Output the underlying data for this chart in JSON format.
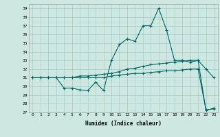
{
  "title": "",
  "xlabel": "Humidex (Indice chaleur)",
  "bg_color": "#cce8e0",
  "grid_color": "#aacccc",
  "line_color": "#006666",
  "xlim": [
    -0.5,
    23.5
  ],
  "ylim": [
    27,
    39.5
  ],
  "yticks": [
    27,
    28,
    29,
    30,
    31,
    32,
    33,
    34,
    35,
    36,
    37,
    38,
    39
  ],
  "xticks": [
    0,
    1,
    2,
    3,
    4,
    5,
    6,
    7,
    8,
    9,
    10,
    11,
    12,
    13,
    14,
    15,
    16,
    17,
    18,
    19,
    20,
    21,
    22,
    23
  ],
  "series": {
    "max": [
      31,
      31,
      31,
      31,
      29.8,
      29.8,
      29.6,
      29.5,
      30.5,
      29.5,
      33,
      34.8,
      35.5,
      35.2,
      37,
      37,
      39,
      36.5,
      33,
      33,
      32.8,
      33,
      27.2,
      27.5
    ],
    "avg": [
      31,
      31,
      31,
      31,
      31,
      31,
      31.2,
      31.2,
      31.3,
      31.4,
      31.5,
      31.7,
      32,
      32.1,
      32.3,
      32.5,
      32.6,
      32.7,
      32.8,
      32.9,
      33,
      33,
      32,
      31
    ],
    "min": [
      31,
      31,
      31,
      31,
      31,
      31,
      31,
      31,
      31,
      31,
      31.2,
      31.3,
      31.4,
      31.5,
      31.5,
      31.6,
      31.7,
      31.8,
      31.8,
      31.9,
      32,
      32,
      27.3,
      27.4
    ]
  }
}
